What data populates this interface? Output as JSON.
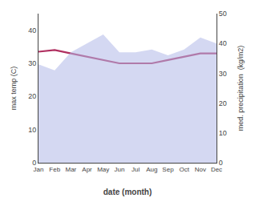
{
  "chart_data": {
    "type": "line",
    "categories": [
      "Jan",
      "Feb",
      "Mar",
      "Apr",
      "May",
      "Jun",
      "Jul",
      "Aug",
      "Sep",
      "Oct",
      "Nov",
      "Dec"
    ],
    "series": [
      {
        "type": "area",
        "axis": "y2",
        "color": "#b0b8e8",
        "values": [
          33,
          31,
          37,
          40,
          43,
          37,
          37,
          38,
          36,
          38,
          42,
          40
        ]
      },
      {
        "type": "line",
        "color": "#b03060",
        "values": [
          33.5,
          34,
          33,
          32,
          31,
          30,
          30,
          30,
          31,
          32,
          33,
          33
        ]
      }
    ],
    "xlabel": "date (month)",
    "ylabel": "max temp (C)",
    "y2label": "med. precipitation  (kg/m2)",
    "ylim": [
      0,
      45
    ],
    "yticks": [
      0,
      10,
      20,
      30,
      40
    ],
    "y2lim": [
      0,
      50
    ],
    "y2ticks": [
      0,
      10,
      20,
      30,
      40,
      50
    ],
    "grid": false
  }
}
